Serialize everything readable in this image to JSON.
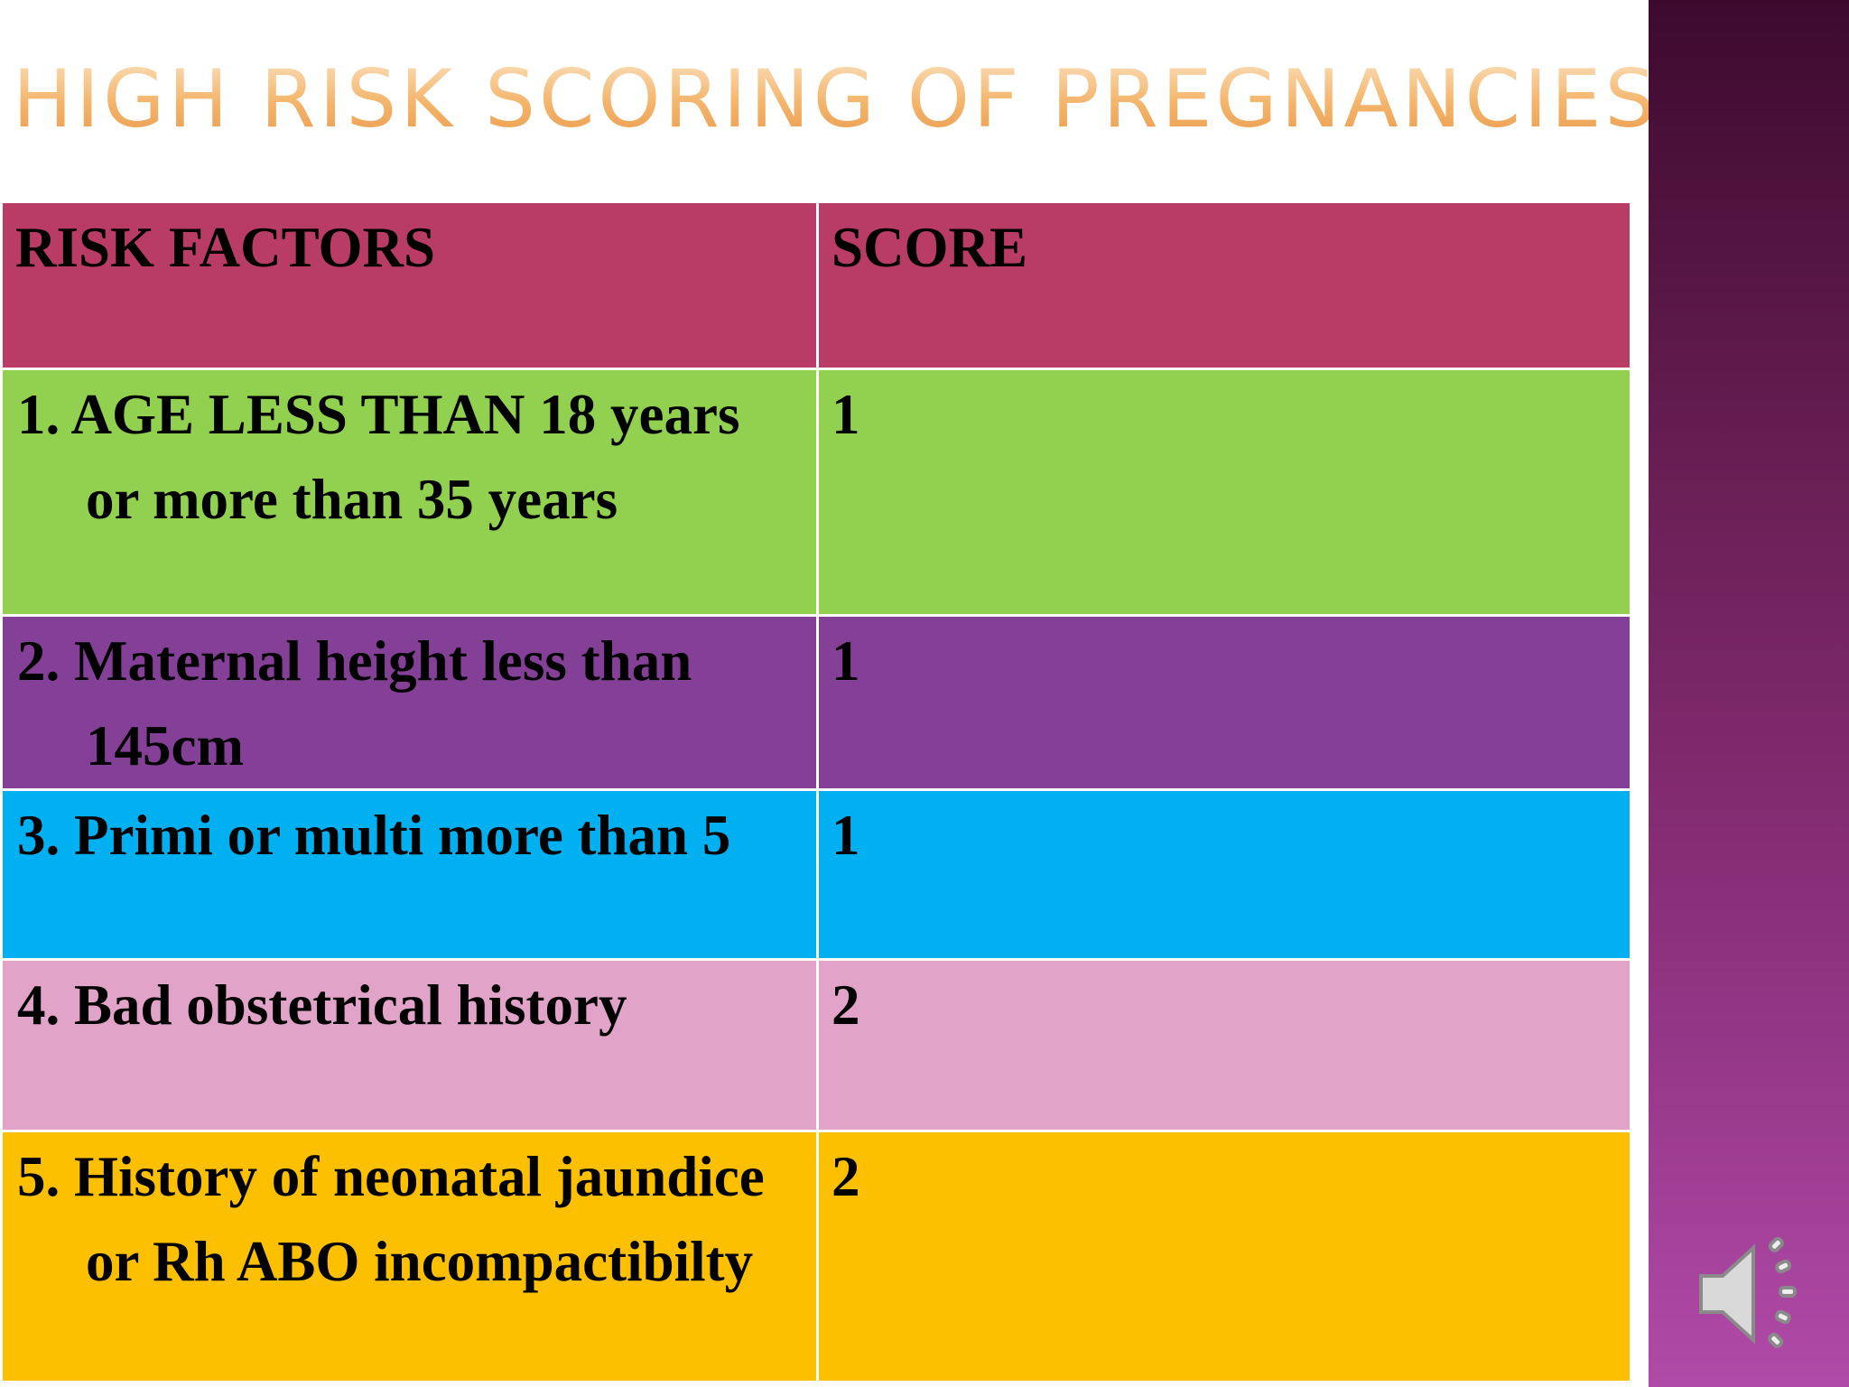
{
  "header": {
    "title": "HIGH RISK SCORING OF PREGNANCIES"
  },
  "table": {
    "columns": [
      "RISK FACTORS",
      "SCORE"
    ],
    "rows": [
      [
        "1. AGE LESS THAN 18 years or more than 35 years",
        1
      ],
      [
        "2. Maternal height less than 145cm",
        1
      ],
      [
        "3. Primi or multi more than 5",
        1
      ],
      [
        "4. Bad obstetrical history",
        2
      ],
      [
        "5. History of neonatal jaundice or Rh ABO incompactibilty",
        2
      ]
    ]
  }
}
